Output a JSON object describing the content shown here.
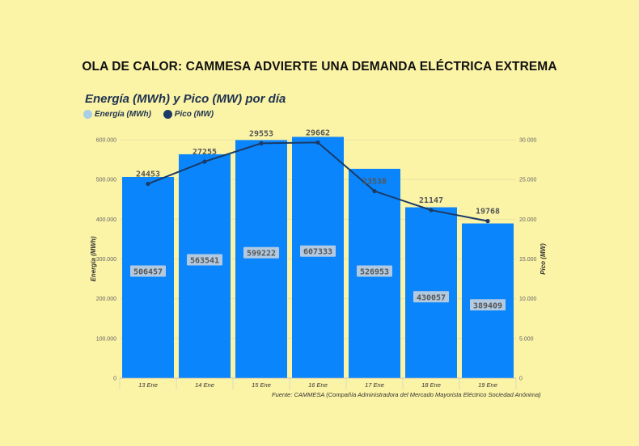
{
  "headline": "OLA DE CALOR: CAMMESA ADVIERTE UNA DEMANDA ELÉCTRICA EXTREMA",
  "colors": {
    "background": "#fbf3a6",
    "bar": "#0a85fb",
    "line": "#1b3a66",
    "energy_legend": "#a9cfe6"
  },
  "chart_data": {
    "type": "bar",
    "title": "Energía (MWh) y Pico (MW) por día",
    "categories": [
      "13 Ene",
      "14 Ene",
      "15 Ene",
      "16 Ene",
      "17 Ene",
      "18 Ene",
      "19 Ene"
    ],
    "series": [
      {
        "name": "Energía (MWh)",
        "type": "bar",
        "axis": "left",
        "values": [
          506457,
          563541,
          599222,
          607333,
          526953,
          430057,
          389409
        ]
      },
      {
        "name": "Pico (MW)",
        "type": "line",
        "axis": "right",
        "values": [
          24453,
          27255,
          29553,
          29662,
          23538,
          21147,
          19768
        ]
      }
    ],
    "ylabel": "Energía (MWh)",
    "ylabel_right": "Pico (MW)",
    "ylim": [
      0,
      600000
    ],
    "ylim_right": [
      0,
      30000
    ],
    "yticks": [
      "0",
      "100.000",
      "200.000",
      "300.000",
      "400.000",
      "500.000",
      "600.000"
    ],
    "yticks_right": [
      "0",
      "5.000",
      "10.000",
      "15.000",
      "20.000",
      "25.000",
      "30.000"
    ],
    "legend": [
      {
        "label": "Energía (MWh)"
      },
      {
        "label": "Pico (MW)"
      }
    ],
    "legend_position": "top-left",
    "source": "Fuente: CAMMESA (Compañía Administradora del Mercado Mayorista Eléctrico Sociedad Anónima)"
  }
}
